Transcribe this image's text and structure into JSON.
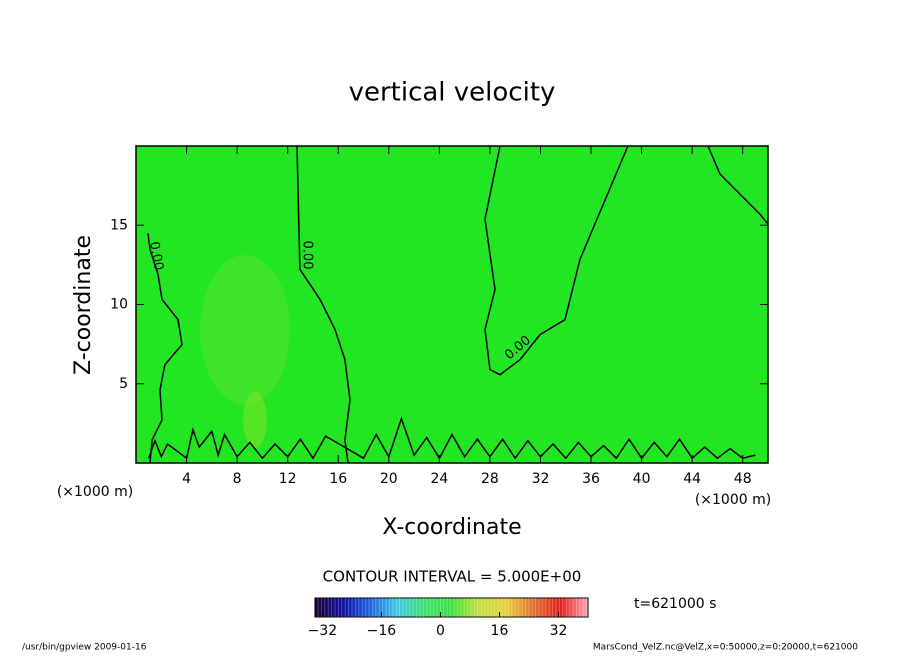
{
  "chart_data": {
    "type": "contour",
    "title": "vertical velocity",
    "x_label": "X-coordinate",
    "y_label": "Z-coordinate",
    "x_unit": "(×1000 m)",
    "y_unit": "(×1000 m)",
    "xlim": [
      0,
      50
    ],
    "ylim": [
      0,
      20
    ],
    "xticks": [
      4,
      8,
      12,
      16,
      20,
      24,
      28,
      32,
      36,
      40,
      44,
      48
    ],
    "yticks": [
      5,
      10,
      15
    ],
    "field_color": "#22e622",
    "line_color": "#000000",
    "contour_label": "0.00",
    "contours": [
      {
        "x": [
          0.95,
          1.11,
          1.74,
          2.06,
          3.32,
          3.64,
          2.29,
          1.9,
          2.06,
          1.27,
          1.11
        ],
        "y": [
          14.49,
          13.48,
          11.9,
          10.32,
          9.05,
          7.47,
          6.2,
          4.62,
          2.72,
          1.46,
          0
        ]
      },
      {
        "x": [
          12.74,
          12.97,
          14.56,
          15.74,
          16.53,
          16.93,
          16.53,
          16.77
        ],
        "y": [
          20,
          12.22,
          10.32,
          8.42,
          6.52,
          3.99,
          1.46,
          0
        ]
      },
      {
        "x": [
          28.8,
          27.61,
          28.4,
          27.61,
          28.01,
          28.8,
          30.38,
          31.96,
          33.94,
          35.13,
          38.92
        ],
        "y": [
          20,
          15.38,
          10.95,
          8.42,
          5.89,
          5.57,
          6.52,
          8.1,
          9.05,
          12.85,
          20
        ]
      },
      {
        "x": [
          45.25,
          46.2,
          49.37,
          50
        ],
        "y": [
          20,
          18.23,
          15.7,
          15.06
        ]
      },
      {
        "x": [
          1,
          1.5,
          2,
          2.5,
          4,
          4.5,
          5,
          6,
          6.5,
          7,
          8,
          9,
          10,
          11,
          12,
          13,
          14,
          15,
          18,
          19,
          20,
          21,
          22,
          23,
          24,
          25,
          26,
          27,
          28,
          29,
          30,
          31,
          32,
          33,
          34,
          35,
          36,
          37,
          38,
          39,
          40,
          41,
          42,
          43,
          44,
          45,
          46,
          47,
          48,
          49
        ],
        "y": [
          0.3,
          1.4,
          0.4,
          1.2,
          0.3,
          2.1,
          1.0,
          2.0,
          0.5,
          1.8,
          0.4,
          1.3,
          0.3,
          1.2,
          0.4,
          1.5,
          0.3,
          1.7,
          0.3,
          1.8,
          0.4,
          2.8,
          0.5,
          1.6,
          0.3,
          1.8,
          0.4,
          1.5,
          0.4,
          1.5,
          0.3,
          1.4,
          0.4,
          1.2,
          0.3,
          1.3,
          0.4,
          1.1,
          0.3,
          1.5,
          0.3,
          1.3,
          0.4,
          1.5,
          0.3,
          1.0,
          0.3,
          0.9,
          0.3,
          0.5
        ]
      }
    ],
    "contour_interval": "CONTOUR INTERVAL = 5.000E+00",
    "time_label": "t=621000 s",
    "colorbar": {
      "lim": [
        -34,
        40
      ],
      "ticks": [
        {
          "value": -32,
          "label": "−32"
        },
        {
          "value": -16,
          "label": "−16"
        },
        0,
        16,
        32
      ],
      "colors": [
        "#1a0030",
        "#1010a0",
        "#2060e0",
        "#40c8e8",
        "#40e070",
        "#40e040",
        "#c0e040",
        "#e8d040",
        "#e07030",
        "#e02020",
        "#ffa8b0"
      ]
    },
    "footer_left": "/usr/bin/gpview   2009-01-16",
    "footer_right": "MarsCond_VelZ.nc@VelZ,x=0:50000,z=0:20000,t=621000"
  }
}
